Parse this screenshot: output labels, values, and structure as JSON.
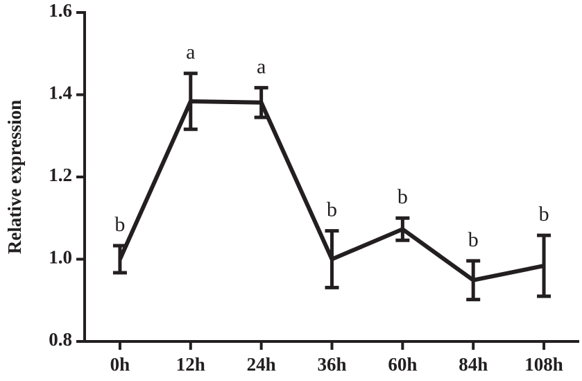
{
  "chart_data": {
    "type": "line",
    "y_label": "Relative expression",
    "categories": [
      "0h",
      "12h",
      "24h",
      "36h",
      "60h",
      "84h",
      "108h"
    ],
    "values": [
      1.0,
      1.384,
      1.381,
      1.0,
      1.073,
      0.949,
      0.984
    ],
    "errors": [
      0.033,
      0.068,
      0.036,
      0.069,
      0.027,
      0.047,
      0.074
    ],
    "significance_labels": [
      "b",
      "a",
      "a",
      "b",
      "b",
      "b",
      "b"
    ],
    "color": "#231f20",
    "ylim": [
      0.8,
      1.6
    ],
    "yticks": [
      0.8,
      {
        "value": 1,
        "label": "1.0"
      },
      1.2,
      1.4,
      1.6
    ]
  }
}
